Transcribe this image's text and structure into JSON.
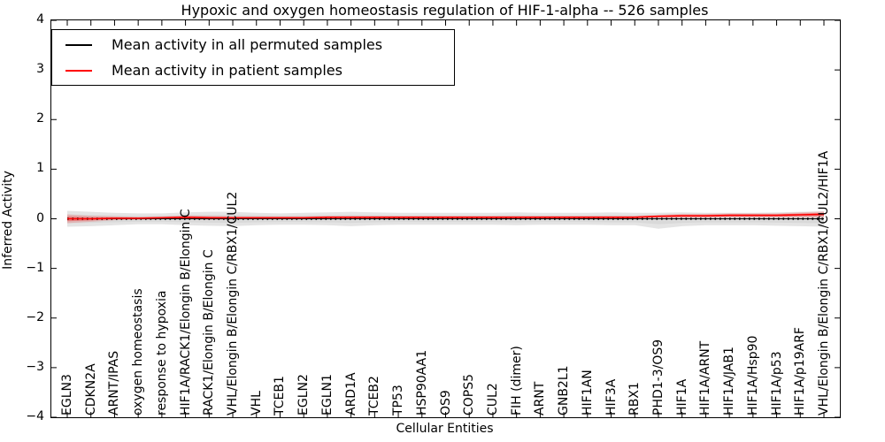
{
  "figure": {
    "title": "Hypoxic and oxygen homeostasis regulation of HIF-1-alpha -- 526 samples",
    "background": "#ffffff"
  },
  "axes": {
    "xlabel": "Cellular Entities",
    "ylabel": "Inferred Activity",
    "ylim": [
      -4,
      4
    ],
    "yticks": [
      {
        "value": 4,
        "label": "4"
      },
      {
        "value": 3,
        "label": "3"
      },
      {
        "value": 2,
        "label": "2"
      },
      {
        "value": 1,
        "label": "1"
      },
      {
        "value": 0,
        "label": "0"
      },
      {
        "value": -1,
        "label": "−1"
      },
      {
        "value": -2,
        "label": "−2"
      },
      {
        "value": -3,
        "label": "−3"
      },
      {
        "value": -4,
        "label": "−4"
      }
    ]
  },
  "legend": {
    "position": "upper left",
    "items": [
      {
        "label": "Mean activity in all permuted samples",
        "color": "#000000"
      },
      {
        "label": "Mean activity in patient samples",
        "color": "#ff0000"
      }
    ]
  },
  "colors": {
    "permuted_line": "#000000",
    "patient_line": "#ff0000",
    "permuted_band": "#e4e4e4",
    "permuted_band_inner": "#d9d9d9",
    "patient_band": "rgba(255,0,0,0.16)",
    "patient_band_inner": "rgba(255,0,0,0.30)",
    "axis": "#000000"
  },
  "chart_data": {
    "type": "line",
    "title": "Hypoxic and oxygen homeostasis regulation of HIF-1-alpha -- 526 samples",
    "xlabel": "Cellular Entities",
    "ylabel": "Inferred Activity",
    "ylim": [
      -4,
      4
    ],
    "grid": false,
    "legend_position": "upper left",
    "categories": [
      "EGLN3",
      "CDKN2A",
      "ARNT/IPAS",
      "oxygen homeostasis",
      "response to hypoxia",
      "HIF1A/RACK1/Elongin B/Elongin C",
      "RACK1/Elongin B/Elongin C",
      "VHL/Elongin B/Elongin C/RBX1/CUL2",
      "VHL",
      "TCEB1",
      "EGLN2",
      "EGLN1",
      "ARD1A",
      "TCEB2",
      "TP53",
      "HSP90AA1",
      "OS9",
      "COPS5",
      "CUL2",
      "FIH (dimer)",
      "ARNT",
      "GNB2L1",
      "HIF1AN",
      "HIF3A",
      "RBX1",
      "PHD1-3/OS9",
      "HIF1A",
      "HIF1A/ARNT",
      "HIF1A/JAB1",
      "HIF1A/Hsp90",
      "HIF1A/p53",
      "HIF1A/p19ARF",
      "VHL/Elongin B/Elongin C/RBX1/CUL2/HIF1A"
    ],
    "series": [
      {
        "name": "Mean activity in all permuted samples",
        "color": "#000000",
        "values": [
          0,
          0,
          0,
          0,
          0,
          0,
          0,
          0,
          0,
          0,
          0,
          0,
          0,
          0,
          0,
          0,
          0,
          0,
          0,
          0,
          0,
          0,
          0,
          0,
          0,
          0,
          0,
          0,
          0,
          0,
          0,
          0,
          0
        ],
        "band_upper": [
          0.16,
          0.14,
          0.12,
          0.11,
          0.11,
          0.13,
          0.14,
          0.14,
          0.12,
          0.11,
          0.12,
          0.13,
          0.14,
          0.13,
          0.12,
          0.12,
          0.12,
          0.12,
          0.12,
          0.13,
          0.12,
          0.12,
          0.12,
          0.13,
          0.12,
          0.12,
          0.13,
          0.12,
          0.12,
          0.12,
          0.13,
          0.14,
          0.15
        ],
        "band_lower": [
          -0.16,
          -0.15,
          -0.13,
          -0.11,
          -0.11,
          -0.13,
          -0.14,
          -0.15,
          -0.13,
          -0.12,
          -0.12,
          -0.13,
          -0.15,
          -0.13,
          -0.12,
          -0.12,
          -0.12,
          -0.12,
          -0.12,
          -0.13,
          -0.12,
          -0.12,
          -0.12,
          -0.13,
          -0.13,
          -0.2,
          -0.15,
          -0.13,
          -0.13,
          -0.13,
          -0.14,
          -0.15,
          -0.16
        ]
      },
      {
        "name": "Mean activity in patient samples",
        "color": "#ff0000",
        "values": [
          0,
          0,
          0.01,
          0.01,
          0.02,
          0.03,
          0.02,
          0.02,
          0.02,
          0.02,
          0.02,
          0.03,
          0.03,
          0.03,
          0.03,
          0.03,
          0.03,
          0.03,
          0.03,
          0.03,
          0.03,
          0.03,
          0.03,
          0.03,
          0.03,
          0.05,
          0.06,
          0.06,
          0.07,
          0.07,
          0.07,
          0.08,
          0.09
        ],
        "band_upper": [
          0.09,
          0.06,
          0.05,
          0.04,
          0.05,
          0.07,
          0.06,
          0.05,
          0.05,
          0.05,
          0.05,
          0.06,
          0.06,
          0.06,
          0.06,
          0.06,
          0.06,
          0.06,
          0.06,
          0.06,
          0.06,
          0.06,
          0.06,
          0.06,
          0.06,
          0.08,
          0.1,
          0.1,
          0.11,
          0.11,
          0.11,
          0.13,
          0.15
        ],
        "band_lower": [
          -0.09,
          -0.06,
          -0.03,
          -0.02,
          -0.01,
          -0.01,
          -0.02,
          -0.01,
          -0.01,
          -0.01,
          -0.01,
          0,
          0,
          0,
          0,
          0,
          0,
          0,
          0,
          0,
          0,
          0,
          0,
          0,
          0,
          0.02,
          0.02,
          0.02,
          0.03,
          0.03,
          0.03,
          0.03,
          0.03
        ]
      }
    ]
  }
}
